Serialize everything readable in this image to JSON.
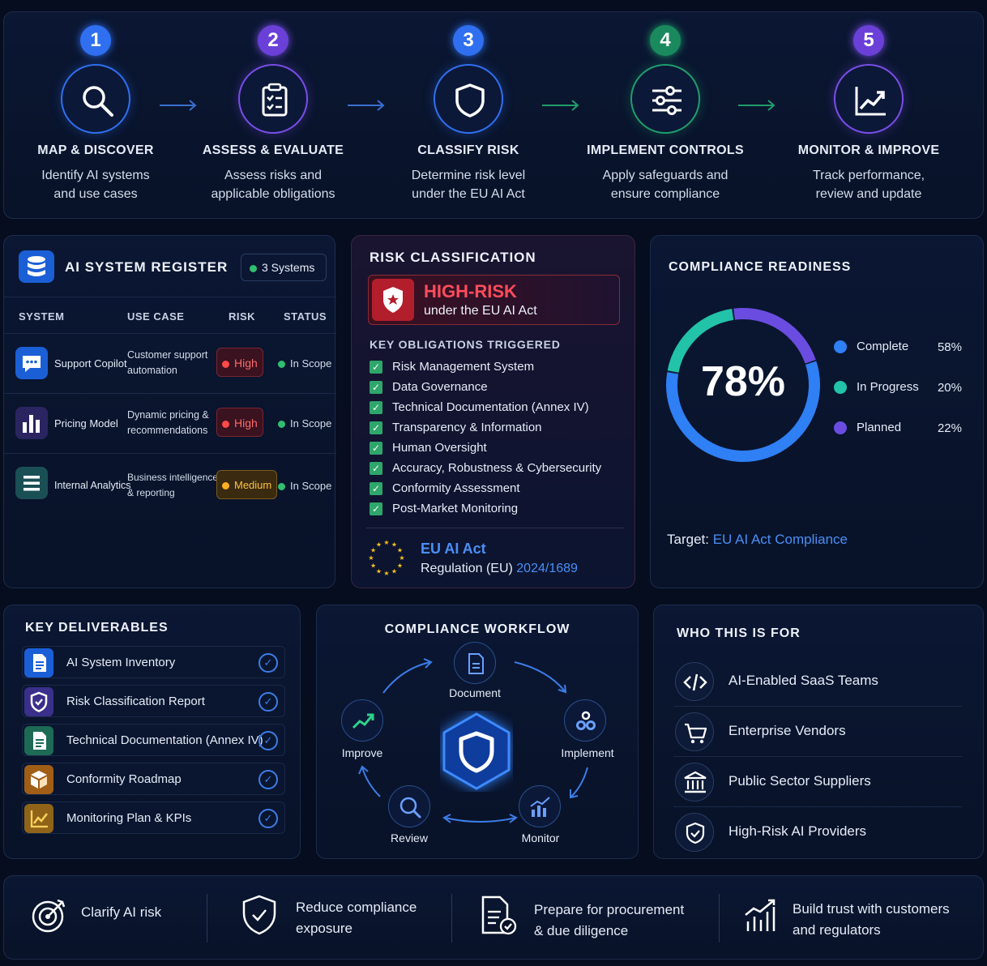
{
  "steps": [
    {
      "num": "1",
      "title": "MAP & DISCOVER",
      "desc": "Identify AI systems\nand use cases",
      "color": "#2f6ff0",
      "icon": "search-icon"
    },
    {
      "num": "2",
      "title": "ASSESS & EVALUATE",
      "desc": "Assess risks and\napplicable obligations",
      "color": "#7a4de8",
      "icon": "clipboard-checklist-icon"
    },
    {
      "num": "3",
      "title": "CLASSIFY RISK",
      "desc": "Determine risk level\nunder the EU AI Act",
      "color": "#2f6ff0",
      "icon": "shield-icon"
    },
    {
      "num": "4",
      "title": "IMPLEMENT CONTROLS",
      "desc": "Apply safeguards and\nensure compliance",
      "color": "#1f9d6b",
      "icon": "sliders-icon"
    },
    {
      "num": "5",
      "title": "MONITOR & IMPROVE",
      "desc": "Track performance,\nreview and update",
      "color": "#7a4de8",
      "icon": "trend-chart-icon"
    }
  ],
  "register": {
    "title": "AI SYSTEM REGISTER",
    "badge": "3 Systems",
    "columns": [
      "SYSTEM",
      "USE CASE",
      "RISK",
      "STATUS"
    ],
    "rows": [
      {
        "system": "Support Copilot",
        "use_case": "Customer support\nautomation",
        "risk": "High",
        "status": "In Scope",
        "icon": "chat-bubble-icon",
        "color": "#1b5fd6"
      },
      {
        "system": "Pricing Model",
        "use_case": "Dynamic pricing &\nrecommendations",
        "risk": "High",
        "status": "In Scope",
        "icon": "bar-chart-icon",
        "color": "#4b3aa8"
      },
      {
        "system": "Internal Analytics",
        "use_case": "Business intelligence\n& reporting",
        "risk": "Medium",
        "status": "In Scope",
        "icon": "list-icon",
        "color": "#1f6b6b"
      }
    ]
  },
  "risk": {
    "title": "RISK CLASSIFICATION",
    "level": "HIGH-RISK",
    "level_sub": "under the EU AI Act",
    "obligations_title": "KEY OBLIGATIONS TRIGGERED",
    "obligations": [
      "Risk Management System",
      "Data Governance",
      "Technical Documentation (Annex IV)",
      "Transparency & Information",
      "Human Oversight",
      "Accuracy, Robustness & Cybersecurity",
      "Conformity Assessment",
      "Post-Market Monitoring"
    ],
    "act_title": "EU AI Act",
    "act_reg_prefix": "Regulation (EU)",
    "act_reg_num": "2024/1689"
  },
  "readiness": {
    "title": "COMPLIANCE READINESS",
    "percent": "78%",
    "segments": [
      {
        "label": "Complete",
        "value": "58%",
        "fraction": 0.58,
        "color": "#2f7ff5"
      },
      {
        "label": "In Progress",
        "value": "20%",
        "fraction": 0.2,
        "color": "#22c3a8"
      },
      {
        "label": "Planned",
        "value": "22%",
        "fraction": 0.22,
        "color": "#6a4de0"
      }
    ],
    "target_label": "Target:",
    "target_value": "EU AI Act Compliance"
  },
  "deliverables": {
    "title": "KEY DELIVERABLES",
    "items": [
      {
        "label": "AI System Inventory",
        "color": "#1b5fd6",
        "icon": "document-icon"
      },
      {
        "label": "Risk Classification Report",
        "color": "#4b3aa8",
        "icon": "shield-icon"
      },
      {
        "label": "Technical Documentation (Annex IV)",
        "color": "#1d7a5f",
        "icon": "document-icon"
      },
      {
        "label": "Conformity Roadmap",
        "color": "#b06a1c",
        "icon": "cube-icon"
      },
      {
        "label": "Monitoring Plan & KPIs",
        "color": "#a8741a",
        "icon": "line-chart-icon"
      }
    ]
  },
  "workflow": {
    "title": "COMPLIANCE WORKFLOW",
    "nodes": [
      "Document",
      "Implement",
      "Monitor",
      "Review",
      "Improve"
    ]
  },
  "who": {
    "title": "WHO THIS IS FOR",
    "items": [
      {
        "label": "AI-Enabled SaaS Teams",
        "icon": "code-icon"
      },
      {
        "label": "Enterprise Vendors",
        "icon": "cart-icon"
      },
      {
        "label": "Public Sector Suppliers",
        "icon": "government-building-icon"
      },
      {
        "label": "High-Risk AI Providers",
        "icon": "shield-check-icon"
      }
    ]
  },
  "benefits": [
    {
      "text": "Clarify AI risk",
      "icon": "target-icon"
    },
    {
      "text": "Reduce compliance\nexposure",
      "icon": "shield-check-icon"
    },
    {
      "text": "Prepare for procurement\n& due diligence",
      "icon": "document-check-icon"
    },
    {
      "text": "Build trust with customers\nand regulators",
      "icon": "growth-chart-icon"
    }
  ]
}
